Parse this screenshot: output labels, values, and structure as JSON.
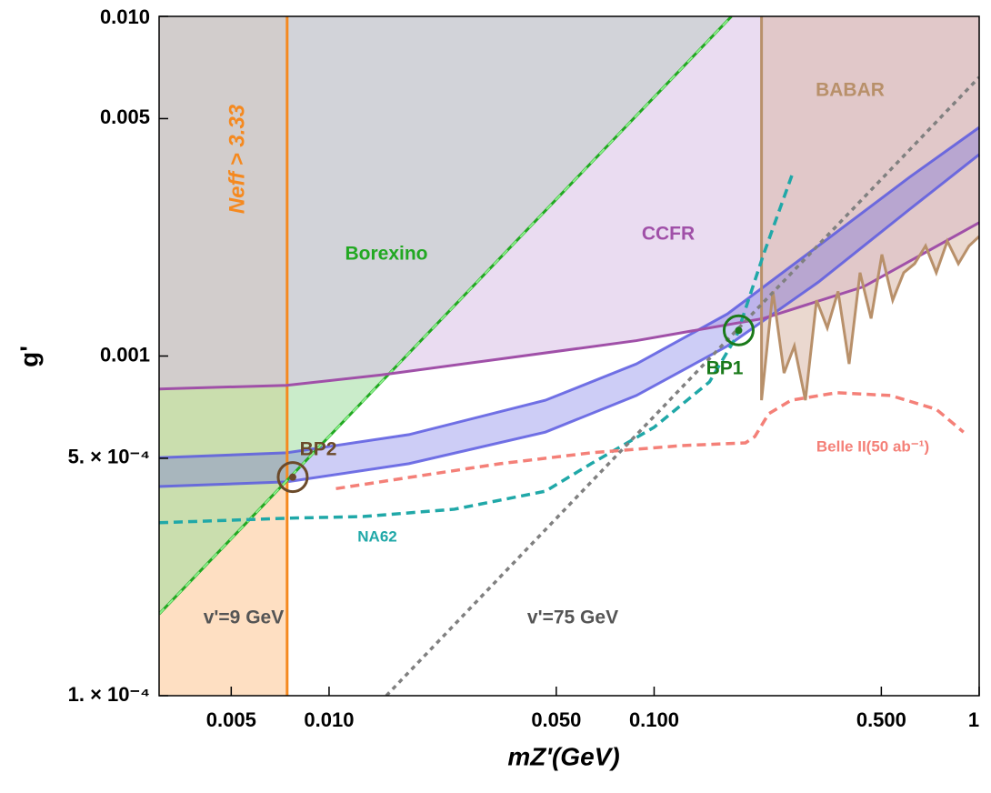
{
  "chart_data": {
    "type": "exclusion",
    "x_label": "mZ'(GeV)",
    "y_label": "g'",
    "xscale": "log",
    "yscale": "log",
    "xlim": [
      0.003,
      1
    ],
    "ylim": [
      0.0001,
      0.01
    ],
    "xticks": [
      0.005,
      {
        "value": 0.01,
        "label": "0.010"
      },
      {
        "value": 0.05,
        "label": "0.050"
      },
      {
        "value": 0.1,
        "label": "0.100"
      },
      {
        "value": 0.5,
        "label": "0.500"
      },
      1
    ],
    "yticks": [
      {
        "value": 0.0001,
        "label": "1. × 10⁻⁴"
      },
      {
        "value": 0.0005,
        "label": "5. × 10⁻⁴"
      },
      0.001,
      0.005,
      {
        "value": 0.01,
        "label": "0.010"
      }
    ],
    "regions": [
      {
        "name": "Neff > 3.33",
        "color": "#f5891f",
        "fill_color": "#fdc590",
        "fill": "left",
        "x": [
          0.00743,
          0.00743
        ],
        "values": [
          0.0001,
          0.01
        ]
      },
      {
        "name": "Borexino",
        "color": "#22a822",
        "fill_color": "#9edc9e",
        "fill": "above",
        "x": [
          0.003,
          0.173
        ],
        "values": [
          0.000174,
          0.01
        ]
      },
      {
        "name": "CCFR",
        "color": "#a050a8",
        "fill_color": "#d8bfe6",
        "fill": "above",
        "x": [
          0.003,
          0.0074,
          0.0145,
          0.0336,
          0.0882,
          0.217,
          0.441,
          1
        ],
        "values": [
          0.0008,
          0.00082,
          0.00088,
          0.00098,
          0.00111,
          0.00129,
          0.0016,
          0.00247
        ]
      },
      {
        "name": "BABAR",
        "color": "#b8906a",
        "fill_color": "#d8b8a8",
        "fill": "above",
        "x": [
          0.214,
          0.214,
          0.232,
          0.251,
          0.27,
          0.292,
          0.316,
          0.341,
          0.368,
          0.398,
          0.43,
          0.465,
          0.502,
          0.542,
          0.586,
          0.633,
          0.684,
          0.738,
          0.798,
          0.863,
          0.931,
          1
        ],
        "values": [
          0.01,
          0.000741,
          0.00155,
          0.000891,
          0.00107,
          0.000741,
          0.00146,
          0.00121,
          0.00155,
          0.000948,
          0.00176,
          0.00129,
          0.00199,
          0.00146,
          0.00176,
          0.00187,
          0.00211,
          0.00176,
          0.00218,
          0.00187,
          0.00211,
          0.00225
        ]
      }
    ],
    "band": {
      "color": "#5a5ae0",
      "x": [
        0.003,
        0.0074,
        0.0176,
        0.0463,
        0.0882,
        0.168,
        0.32,
        0.61,
        1
      ],
      "upper": [
        0.000502,
        0.000519,
        0.000587,
        0.000741,
        0.000948,
        0.00133,
        0.00211,
        0.00336,
        0.00471
      ],
      "lower": [
        0.000413,
        0.000426,
        0.000482,
        0.000597,
        0.000765,
        0.00107,
        0.00165,
        0.0027,
        0.00392
      ]
    },
    "curves": [
      {
        "name": "NA62",
        "color": "#20a8a8",
        "style": "dashed",
        "x": [
          0.003,
          0.0074,
          0.0128,
          0.0243,
          0.0463,
          0.064,
          0.1,
          0.148,
          0.179,
          0.217,
          0.267
        ],
        "values": [
          0.000323,
          0.000333,
          0.000337,
          0.000354,
          0.0004,
          0.000482,
          0.000617,
          0.000839,
          0.00114,
          0.00199,
          0.00346
        ]
      },
      {
        "name": "Belle II(50 ab⁻¹)",
        "color": "#f48078",
        "style": "dashed",
        "x": [
          0.0105,
          0.0176,
          0.0336,
          0.064,
          0.122,
          0.191,
          0.204,
          0.225,
          0.264,
          0.364,
          0.535,
          0.738,
          0.895
        ],
        "values": [
          0.000407,
          0.000439,
          0.000482,
          0.000519,
          0.000545,
          0.000555,
          0.000579,
          0.000676,
          0.000741,
          0.00078,
          0.000765,
          0.000697,
          0.000597
        ]
      },
      {
        "name": "v'=75 GeV",
        "color": "#808080",
        "style": "dotted",
        "x": [
          0.015,
          1
        ],
        "values": [
          0.0001,
          0.00662
        ]
      }
    ],
    "annotations": [
      "v'=9 GeV"
    ],
    "points": [
      {
        "name": "BP1",
        "color": "#1a7a1a",
        "x": 0.182,
        "y": 0.00119
      },
      {
        "name": "BP2",
        "color": "#6b4a2a",
        "x": 0.00773,
        "y": 0.00044
      }
    ]
  }
}
